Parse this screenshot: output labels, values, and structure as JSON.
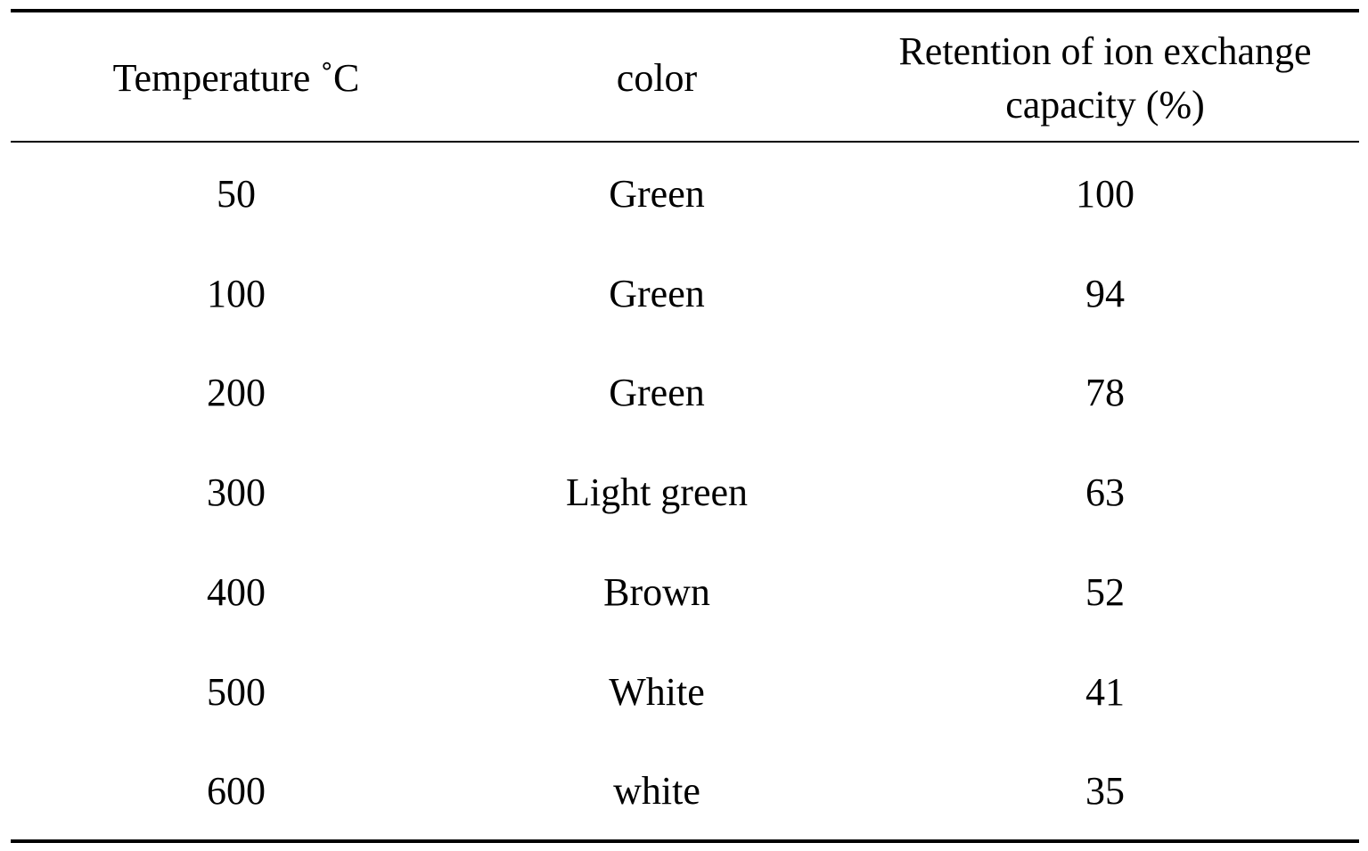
{
  "table": {
    "header": [
      "Temperature ˚C",
      "color",
      "Retention of ion exchange capacity (%)"
    ],
    "rows": [
      [
        50,
        "Green",
        100
      ],
      [
        100,
        "Green",
        94
      ],
      [
        200,
        "Green",
        78
      ],
      [
        300,
        "Light green",
        63
      ],
      [
        400,
        "Brown",
        52
      ],
      [
        500,
        "White",
        41
      ],
      [
        600,
        "white",
        35
      ]
    ]
  }
}
